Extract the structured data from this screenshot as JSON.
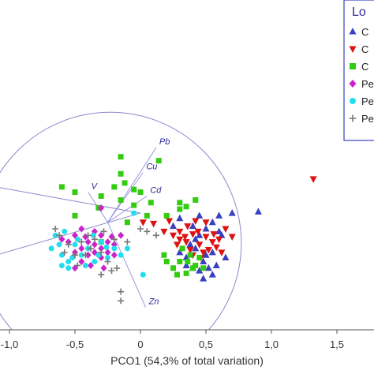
{
  "chart_data": {
    "type": "scatter",
    "xlabel": "PCO1 (54,3% of total variation)",
    "ylabel": "",
    "xlim": [
      -1.1,
      1.6
    ],
    "x_ticks": [
      "-1,0",
      "-0,5",
      "0",
      "0,5",
      "1,0",
      "1,5"
    ],
    "x_tick_values": [
      -1.0,
      -0.5,
      0,
      0.5,
      1.0,
      1.5
    ],
    "legend": {
      "title": "Lo",
      "placement": "top-right",
      "entries": [
        "C",
        "C",
        "C",
        "Pe",
        "Pe",
        "Pe"
      ]
    },
    "vectors": [
      {
        "label": "Pb",
        "x": 0.12,
        "y": 0.62
      },
      {
        "label": "Cu",
        "x": 0.02,
        "y": 0.43
      },
      {
        "label": "V",
        "x": -0.4,
        "y": 0.28
      },
      {
        "label": "Cd",
        "x": 0.05,
        "y": 0.25
      },
      {
        "label": "Zn",
        "x": 0.04,
        "y": -0.6
      }
    ],
    "circle": {
      "cx": -0.23,
      "cy": -0.11,
      "r": 1.0
    },
    "series": [
      {
        "marker": "triangle-up",
        "color": "#3a3fbf",
        "points": [
          [
            0.9,
            0.13
          ],
          [
            0.55,
            0.05
          ],
          [
            0.6,
            -0.02
          ],
          [
            0.45,
            0.1
          ],
          [
            0.38,
            -0.12
          ],
          [
            0.42,
            -0.15
          ],
          [
            0.5,
            -0.2
          ],
          [
            0.55,
            -0.18
          ],
          [
            0.62,
            -0.05
          ],
          [
            0.48,
            -0.25
          ],
          [
            0.4,
            -0.3
          ],
          [
            0.35,
            -0.28
          ],
          [
            0.52,
            -0.3
          ],
          [
            0.45,
            -0.05
          ],
          [
            0.3,
            0.08
          ],
          [
            0.25,
            0.02
          ],
          [
            0.58,
            -0.28
          ],
          [
            0.65,
            -0.22
          ],
          [
            0.7,
            0.12
          ],
          [
            0.4,
            0.02
          ],
          [
            0.35,
            -0.22
          ],
          [
            0.55,
            -0.35
          ],
          [
            0.48,
            -0.38
          ],
          [
            0.3,
            -0.18
          ],
          [
            0.6,
            0.1
          ],
          [
            0.42,
            -0.08
          ],
          [
            0.5,
            0.0
          ],
          [
            0.45,
            -0.32
          ]
        ]
      },
      {
        "marker": "triangle-down",
        "color": "#dd1111",
        "points": [
          [
            1.32,
            0.38
          ],
          [
            0.02,
            0.05
          ],
          [
            0.1,
            0.04
          ],
          [
            0.18,
            -0.02
          ],
          [
            0.25,
            -0.05
          ],
          [
            0.3,
            -0.08
          ],
          [
            0.35,
            -0.1
          ],
          [
            0.4,
            -0.04
          ],
          [
            0.45,
            -0.12
          ],
          [
            0.5,
            -0.06
          ],
          [
            0.55,
            -0.1
          ],
          [
            0.6,
            -0.08
          ],
          [
            0.65,
            0.0
          ],
          [
            0.5,
            0.05
          ],
          [
            0.42,
            0.06
          ],
          [
            0.38,
            -0.16
          ],
          [
            0.48,
            -0.18
          ],
          [
            0.58,
            -0.14
          ],
          [
            0.3,
            -0.02
          ],
          [
            0.22,
            0.06
          ],
          [
            0.62,
            -0.18
          ],
          [
            0.44,
            -0.02
          ],
          [
            0.36,
            0.02
          ],
          [
            0.52,
            -0.16
          ],
          [
            0.28,
            -0.12
          ],
          [
            0.46,
            -0.22
          ],
          [
            0.34,
            -0.06
          ],
          [
            0.56,
            -0.04
          ],
          [
            0.4,
            -0.2
          ],
          [
            0.7,
            -0.06
          ]
        ]
      },
      {
        "marker": "square",
        "color": "#33cc11",
        "points": [
          [
            -0.15,
            0.55
          ],
          [
            0.14,
            0.52
          ],
          [
            -0.6,
            0.32
          ],
          [
            -0.5,
            0.28
          ],
          [
            -0.15,
            0.42
          ],
          [
            -0.12,
            0.35
          ],
          [
            -0.2,
            0.32
          ],
          [
            -0.3,
            0.25
          ],
          [
            0.3,
            0.2
          ],
          [
            0.42,
            0.22
          ],
          [
            0.35,
            0.17
          ],
          [
            -0.05,
            0.18
          ],
          [
            0.0,
            0.28
          ],
          [
            -0.05,
            0.3
          ],
          [
            -0.15,
            0.22
          ],
          [
            -0.5,
            0.1
          ],
          [
            -0.32,
            0.16
          ],
          [
            0.2,
            0.1
          ],
          [
            0.3,
            0.15
          ],
          [
            -0.1,
            0.05
          ],
          [
            0.05,
            0.1
          ],
          [
            0.08,
            0.2
          ],
          [
            0.18,
            -0.2
          ],
          [
            0.25,
            -0.3
          ],
          [
            0.3,
            -0.25
          ],
          [
            0.35,
            -0.34
          ],
          [
            0.4,
            -0.3
          ],
          [
            0.45,
            -0.22
          ],
          [
            0.38,
            -0.2
          ],
          [
            0.42,
            -0.28
          ],
          [
            0.32,
            -0.15
          ],
          [
            0.28,
            -0.35
          ],
          [
            0.2,
            -0.25
          ],
          [
            -0.3,
            -0.1
          ],
          [
            0.36,
            -0.25
          ],
          [
            0.48,
            -0.3
          ]
        ]
      },
      {
        "marker": "diamond",
        "color": "#cc22cc",
        "points": [
          [
            -0.3,
            0.16
          ],
          [
            -0.45,
            0.0
          ],
          [
            -0.5,
            -0.05
          ],
          [
            -0.55,
            -0.1
          ],
          [
            -0.6,
            -0.08
          ],
          [
            -0.4,
            -0.1
          ],
          [
            -0.35,
            -0.12
          ],
          [
            -0.3,
            -0.15
          ],
          [
            -0.25,
            -0.18
          ],
          [
            -0.2,
            -0.2
          ],
          [
            -0.3,
            -0.22
          ],
          [
            -0.35,
            -0.18
          ],
          [
            -0.4,
            -0.2
          ],
          [
            -0.45,
            -0.15
          ],
          [
            -0.5,
            -0.18
          ],
          [
            -0.25,
            -0.1
          ],
          [
            -0.2,
            -0.12
          ],
          [
            -0.15,
            -0.05
          ],
          [
            -0.3,
            -0.05
          ],
          [
            -0.35,
            -0.02
          ],
          [
            -0.45,
            -0.25
          ],
          [
            -0.38,
            -0.28
          ],
          [
            -0.28,
            -0.3
          ],
          [
            -0.22,
            -0.06
          ],
          [
            -0.5,
            -0.3
          ],
          [
            -0.42,
            -0.06
          ]
        ]
      },
      {
        "marker": "circle",
        "color": "#22ddee",
        "points": [
          [
            -0.05,
            0.12
          ],
          [
            0.02,
            -0.35
          ],
          [
            -0.1,
            -0.15
          ],
          [
            -0.65,
            -0.05
          ],
          [
            -0.68,
            -0.15
          ],
          [
            -0.6,
            -0.2
          ],
          [
            -0.55,
            -0.25
          ],
          [
            -0.5,
            -0.12
          ],
          [
            -0.45,
            -0.2
          ],
          [
            -0.4,
            -0.15
          ],
          [
            -0.35,
            -0.25
          ],
          [
            -0.3,
            -0.1
          ],
          [
            -0.25,
            -0.22
          ],
          [
            -0.2,
            -0.15
          ],
          [
            -0.15,
            -0.2
          ],
          [
            -0.62,
            -0.12
          ],
          [
            -0.58,
            -0.02
          ],
          [
            -0.52,
            -0.22
          ],
          [
            -0.48,
            -0.08
          ],
          [
            -0.42,
            -0.28
          ],
          [
            -0.36,
            -0.05
          ],
          [
            -0.32,
            -0.2
          ],
          [
            -0.26,
            -0.14
          ],
          [
            -0.55,
            -0.3
          ],
          [
            -0.6,
            -0.28
          ]
        ]
      },
      {
        "marker": "plus",
        "color": "#777777",
        "points": [
          [
            -0.65,
            0.0
          ],
          [
            -0.62,
            -0.05
          ],
          [
            -0.55,
            -0.12
          ],
          [
            -0.5,
            -0.2
          ],
          [
            -0.45,
            -0.1
          ],
          [
            -0.4,
            -0.05
          ],
          [
            -0.35,
            -0.08
          ],
          [
            -0.3,
            -0.18
          ],
          [
            -0.25,
            -0.25
          ],
          [
            -0.2,
            -0.08
          ],
          [
            -0.15,
            -0.48
          ],
          [
            -0.15,
            -0.55
          ],
          [
            -0.18,
            -0.3
          ],
          [
            0.0,
            0.0
          ],
          [
            0.12,
            -0.05
          ],
          [
            -0.3,
            -0.35
          ],
          [
            -0.38,
            -0.15
          ],
          [
            -0.48,
            -0.28
          ],
          [
            -0.28,
            -0.02
          ],
          [
            -0.22,
            -0.32
          ],
          [
            -0.42,
            -0.2
          ],
          [
            -0.58,
            -0.18
          ],
          [
            -0.1,
            -0.1
          ],
          [
            0.05,
            -0.02
          ]
        ]
      }
    ]
  }
}
